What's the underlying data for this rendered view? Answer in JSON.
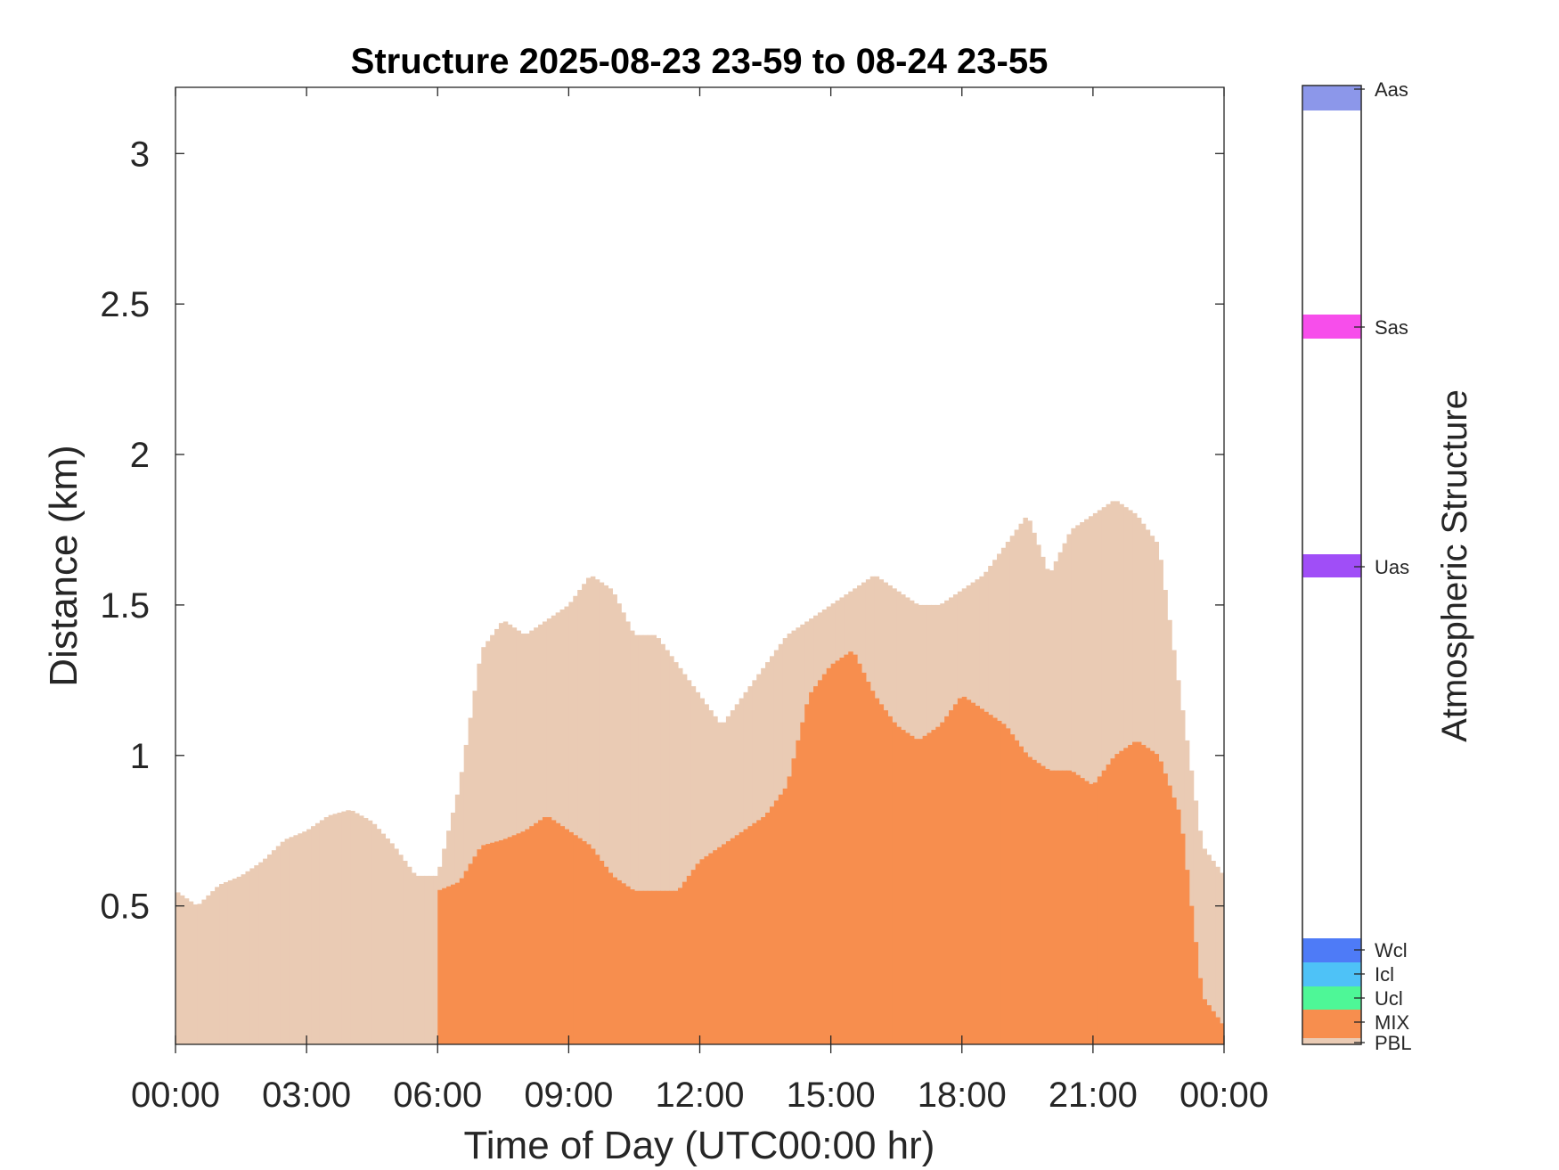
{
  "chart_data": {
    "type": "heatmap",
    "title": "Structure 2025-08-23 23-59 to 08-24 23-55",
    "xlabel": "Time of Day (UTC00:00 hr)",
    "ylabel": "Distance (km)",
    "colorbar_label": "Atmospheric Structure",
    "x_ticks": [
      "00:00",
      "03:00",
      "06:00",
      "09:00",
      "12:00",
      "15:00",
      "18:00",
      "21:00",
      "00:00"
    ],
    "y_ticks": [
      "0.5",
      "1",
      "1.5",
      "2",
      "2.5",
      "3"
    ],
    "xlim_hours": [
      0,
      24
    ],
    "ylim_km": [
      0.04,
      3.22
    ],
    "categories": [
      {
        "code": "PBL",
        "color": "#EACBB4"
      },
      {
        "code": "MIX",
        "color": "#F78E4E"
      },
      {
        "code": "Ucl",
        "color": "#4EF797"
      },
      {
        "code": "Icl",
        "color": "#4EC2F7"
      },
      {
        "code": "Wcl",
        "color": "#4E7BF7"
      },
      {
        "code": "Uas",
        "color": "#A04EF7"
      },
      {
        "code": "Sas",
        "color": "#F74EEB"
      },
      {
        "code": "Aas",
        "color": "#8C97EA"
      }
    ],
    "series": [
      {
        "name": "PBL",
        "values_hour_km": [
          [
            0,
            0.55
          ],
          [
            0.5,
            0.5
          ],
          [
            1,
            0.57
          ],
          [
            1.5,
            0.6
          ],
          [
            2,
            0.65
          ],
          [
            2.5,
            0.72
          ],
          [
            3,
            0.75
          ],
          [
            3.5,
            0.8
          ],
          [
            4,
            0.82
          ],
          [
            4.5,
            0.78
          ],
          [
            5,
            0.7
          ],
          [
            5.5,
            0.6
          ],
          [
            6,
            0.6
          ],
          [
            6.5,
            0.9
          ],
          [
            7,
            1.35
          ],
          [
            7.5,
            1.45
          ],
          [
            8,
            1.4
          ],
          [
            8.5,
            1.45
          ],
          [
            9,
            1.5
          ],
          [
            9.5,
            1.6
          ],
          [
            10,
            1.55
          ],
          [
            10.5,
            1.4
          ],
          [
            11,
            1.4
          ],
          [
            11.5,
            1.3
          ],
          [
            12,
            1.2
          ],
          [
            12.5,
            1.1
          ],
          [
            13,
            1.2
          ],
          [
            13.5,
            1.3
          ],
          [
            14,
            1.4
          ],
          [
            14.5,
            1.45
          ],
          [
            15,
            1.5
          ],
          [
            15.5,
            1.55
          ],
          [
            16,
            1.6
          ],
          [
            16.5,
            1.55
          ],
          [
            17,
            1.5
          ],
          [
            17.5,
            1.5
          ],
          [
            18,
            1.55
          ],
          [
            18.5,
            1.6
          ],
          [
            19,
            1.7
          ],
          [
            19.5,
            1.8
          ],
          [
            20,
            1.6
          ],
          [
            20.5,
            1.75
          ],
          [
            21,
            1.8
          ],
          [
            21.5,
            1.85
          ],
          [
            22,
            1.8
          ],
          [
            22.5,
            1.7
          ],
          [
            23,
            1.2
          ],
          [
            23.5,
            0.7
          ],
          [
            24,
            0.6
          ]
        ]
      },
      {
        "name": "MIX",
        "values_hour_km": [
          [
            6,
            0.55
          ],
          [
            6.5,
            0.58
          ],
          [
            7,
            0.7
          ],
          [
            7.5,
            0.72
          ],
          [
            8,
            0.75
          ],
          [
            8.5,
            0.8
          ],
          [
            9,
            0.75
          ],
          [
            9.5,
            0.7
          ],
          [
            10,
            0.6
          ],
          [
            10.5,
            0.55
          ],
          [
            11,
            0.55
          ],
          [
            11.5,
            0.55
          ],
          [
            12,
            0.65
          ],
          [
            12.5,
            0.7
          ],
          [
            13,
            0.75
          ],
          [
            13.5,
            0.8
          ],
          [
            14,
            0.9
          ],
          [
            14.5,
            1.2
          ],
          [
            15,
            1.3
          ],
          [
            15.5,
            1.35
          ],
          [
            16,
            1.2
          ],
          [
            16.5,
            1.1
          ],
          [
            17,
            1.05
          ],
          [
            17.5,
            1.1
          ],
          [
            18,
            1.2
          ],
          [
            18.5,
            1.15
          ],
          [
            19,
            1.1
          ],
          [
            19.5,
            1.0
          ],
          [
            20,
            0.95
          ],
          [
            20.5,
            0.95
          ],
          [
            21,
            0.9
          ],
          [
            21.5,
            1.0
          ],
          [
            22,
            1.05
          ],
          [
            22.5,
            1.0
          ],
          [
            23,
            0.8
          ],
          [
            23.5,
            0.2
          ],
          [
            24,
            0.1
          ]
        ]
      }
    ]
  }
}
